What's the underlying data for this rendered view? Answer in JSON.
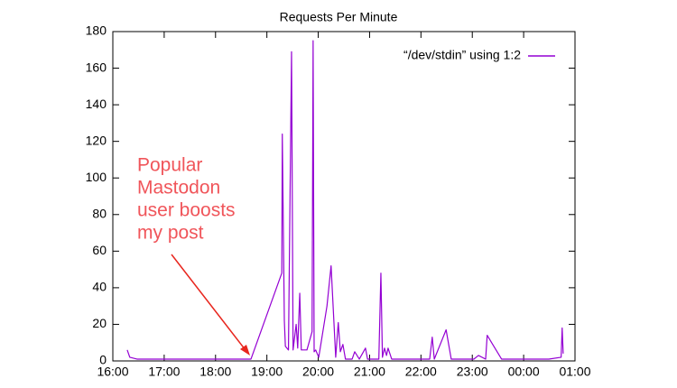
{
  "chart_data": {
    "type": "line",
    "title": "Requests Per Minute",
    "xlim": [
      16,
      25
    ],
    "xticks": [
      {
        "value": 16,
        "label": "16:00"
      },
      {
        "value": 17,
        "label": "17:00"
      },
      {
        "value": 18,
        "label": "18:00"
      },
      {
        "value": 19,
        "label": "19:00"
      },
      {
        "value": 20,
        "label": "20:00"
      },
      {
        "value": 21,
        "label": "21:00"
      },
      {
        "value": 22,
        "label": "22:00"
      },
      {
        "value": 23,
        "label": "23:00"
      },
      {
        "value": 24,
        "label": "00:00"
      },
      {
        "value": 25,
        "label": "01:00"
      }
    ],
    "ylim": [
      0,
      180
    ],
    "yticks": [
      0,
      20,
      40,
      60,
      80,
      100,
      120,
      140,
      160,
      180
    ],
    "legend": "top-right",
    "annotation": [
      "Popular",
      "Mastodon",
      "user boosts",
      "my post"
    ],
    "series": [
      {
        "name": "“/dev/stdin” using 1:2",
        "color": "#9400d3",
        "x": [
          16.28,
          16.33,
          16.47,
          18.69,
          19.29,
          19.3,
          19.34,
          19.36,
          19.42,
          19.48,
          19.51,
          19.57,
          19.6,
          19.64,
          19.67,
          19.78,
          19.88,
          19.9,
          19.92,
          19.95,
          20.01,
          20.17,
          20.25,
          20.34,
          20.39,
          20.43,
          20.48,
          20.53,
          20.66,
          20.71,
          20.8,
          20.92,
          20.96,
          21.18,
          21.22,
          21.25,
          21.29,
          21.33,
          21.36,
          21.43,
          22.17,
          22.22,
          22.26,
          22.49,
          22.59,
          23.03,
          23.12,
          23.26,
          23.29,
          23.57,
          24.49,
          24.73,
          24.75,
          24.77
        ],
        "values": [
          6,
          2,
          1,
          1,
          48,
          124,
          22,
          8,
          6,
          169,
          6,
          20,
          7,
          37,
          6,
          6,
          16,
          175,
          5,
          6,
          2,
          30,
          52,
          2,
          21,
          5,
          9,
          1,
          1,
          5,
          1,
          7,
          1,
          1,
          48,
          2,
          7,
          3,
          7,
          1,
          1,
          13,
          1,
          17,
          1,
          1,
          3,
          1,
          14,
          1,
          1,
          2,
          18,
          4
        ]
      }
    ]
  }
}
